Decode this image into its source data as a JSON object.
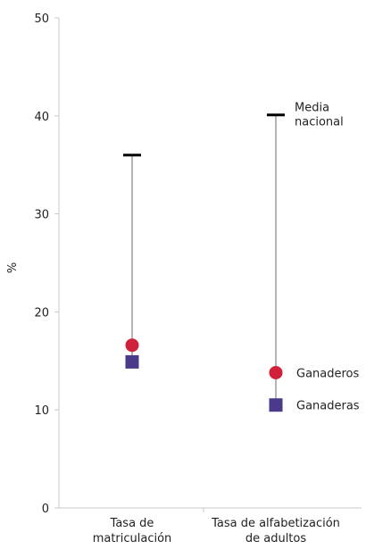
{
  "chart_data": {
    "type": "scatter",
    "ylabel": "%",
    "ylim": [
      0,
      50
    ],
    "yticks": [
      0,
      10,
      20,
      30,
      40,
      50
    ],
    "categories": [
      [
        "Tasa de",
        "matriculación"
      ],
      [
        "Tasa de alfabetización",
        "de adultos"
      ]
    ],
    "series": [
      {
        "name": [
          "Media",
          "nacional"
        ],
        "marker": "dash",
        "color": "#000000",
        "values": [
          36,
          40.1
        ]
      },
      {
        "name": [
          "Ganaderos"
        ],
        "marker": "circle",
        "color": "#d0203a",
        "values": [
          16.6,
          13.8
        ]
      },
      {
        "name": [
          "Ganaderas"
        ],
        "marker": "square",
        "color": "#4b3a8c",
        "values": [
          14.9,
          10.5
        ]
      }
    ],
    "range_line_color": "#b5b5b5",
    "axis_color": "#c8c8c8",
    "labels_on_category": 1,
    "grid": false
  }
}
